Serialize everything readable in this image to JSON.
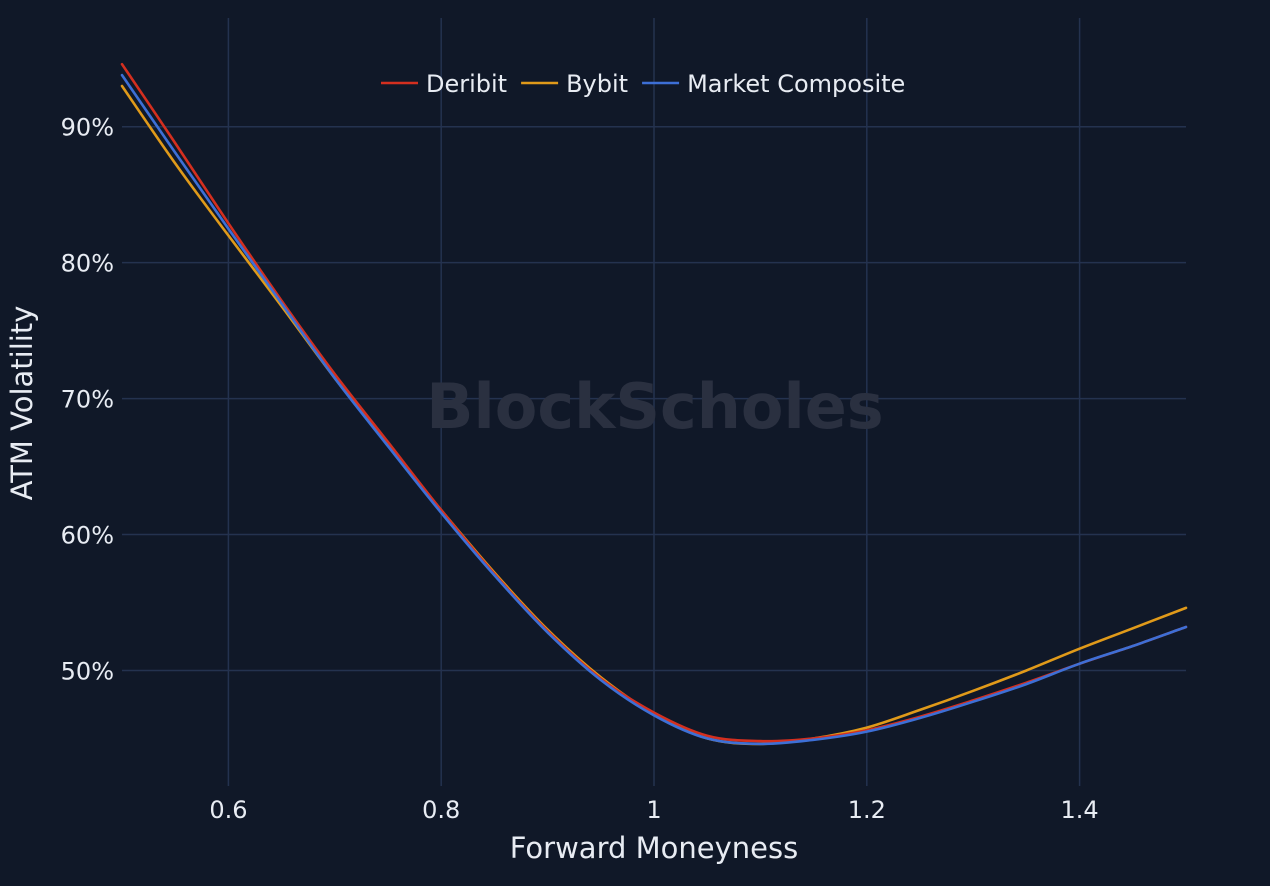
{
  "chart_data": {
    "type": "line",
    "xlabel": "Forward Moneyness",
    "ylabel": "ATM Volatility",
    "watermark": "BlockScholes",
    "xlim": [
      0.5,
      1.5
    ],
    "ylim": [
      41.5,
      98
    ],
    "x_ticks": [
      0.6,
      0.8,
      1.0,
      1.2,
      1.4
    ],
    "x_tick_labels": [
      "0.6",
      "0.8",
      "1",
      "1.2",
      "1.4"
    ],
    "y_ticks": [
      50,
      60,
      70,
      80,
      90
    ],
    "y_tick_labels": [
      "50%",
      "60%",
      "70%",
      "80%",
      "90%"
    ],
    "grid": true,
    "legend_position": "top-center",
    "x": [
      0.5,
      0.55,
      0.6,
      0.65,
      0.7,
      0.75,
      0.8,
      0.85,
      0.9,
      0.95,
      1.0,
      1.05,
      1.1,
      1.15,
      1.2,
      1.25,
      1.3,
      1.35,
      1.4,
      1.45,
      1.5
    ],
    "series": [
      {
        "name": "Deribit",
        "color": "#d42f1f",
        "values": [
          94.6,
          88.8,
          82.9,
          77.2,
          71.8,
          66.8,
          61.8,
          57.1,
          52.9,
          49.4,
          46.9,
          45.2,
          44.8,
          45.0,
          45.6,
          46.6,
          47.8,
          49.1,
          50.5,
          51.8,
          53.2
        ]
      },
      {
        "name": "Bybit",
        "color": "#e09a1a",
        "values": [
          93.0,
          87.3,
          82.0,
          76.8,
          71.5,
          66.6,
          61.8,
          57.2,
          53.0,
          49.5,
          46.8,
          45.0,
          44.6,
          45.0,
          45.8,
          47.1,
          48.5,
          50.0,
          51.6,
          53.1,
          54.6
        ]
      },
      {
        "name": "Market Composite",
        "color": "#3d6fd6",
        "values": [
          93.8,
          88.1,
          82.5,
          77.0,
          71.5,
          66.5,
          61.6,
          57.0,
          52.8,
          49.3,
          46.7,
          45.0,
          44.6,
          44.9,
          45.5,
          46.5,
          47.7,
          49.0,
          50.5,
          51.8,
          53.2
        ]
      }
    ]
  }
}
